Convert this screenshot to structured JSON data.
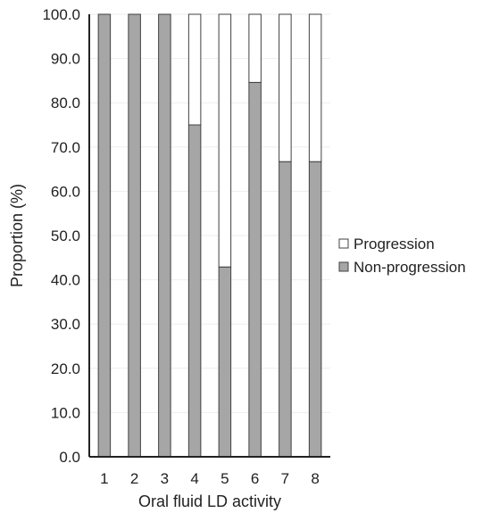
{
  "chart_data": {
    "type": "bar",
    "stacked": true,
    "percent": true,
    "xlabel": "Oral fluid LD activity",
    "ylabel": "Proportion (%)",
    "ylim": [
      0,
      100
    ],
    "yticks": [
      "0.0",
      "10.0",
      "20.0",
      "30.0",
      "40.0",
      "50.0",
      "60.0",
      "70.0",
      "80.0",
      "90.0",
      "100.0"
    ],
    "categories": [
      "1",
      "2",
      "3",
      "4",
      "5",
      "6",
      "7",
      "8"
    ],
    "series": [
      {
        "name": "Non-progression",
        "values": [
          100,
          100,
          100,
          75,
          42.9,
          84.6,
          66.7,
          66.7
        ],
        "color": "#a6a6a6"
      },
      {
        "name": "Progression",
        "values": [
          0,
          0,
          0,
          25,
          57.1,
          15.4,
          33.3,
          33.3
        ],
        "color": "#ffffff"
      }
    ],
    "legend": {
      "position": "right",
      "entries": [
        "Progression",
        "Non-progression"
      ]
    },
    "grid": true,
    "gridColor": "#eeeeee",
    "axisColor": "#222222",
    "barOutline": "#404040"
  }
}
